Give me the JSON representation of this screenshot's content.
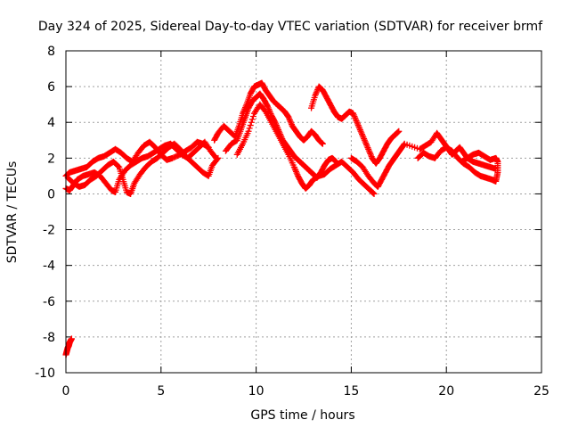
{
  "chart_data": {
    "type": "scatter",
    "title": "Day 324 of 2025, Sidereal Day-to-day VTEC variation (SDTVAR) for receiver brmf",
    "xlabel": "GPS time / hours",
    "ylabel": "SDTVAR / TECUs",
    "xlim": [
      0,
      25
    ],
    "ylim": [
      -10,
      8
    ],
    "xticks": [
      0,
      5,
      10,
      15,
      20,
      25
    ],
    "yticks": [
      -10,
      -8,
      -6,
      -4,
      -2,
      0,
      2,
      4,
      6,
      8
    ],
    "grid": true,
    "marker": "plus",
    "color": "#ff0000",
    "series": [
      {
        "name": "tracks-early",
        "points": [
          [
            0.0,
            1.0
          ],
          [
            0.2,
            1.2
          ],
          [
            0.5,
            1.3
          ],
          [
            0.8,
            1.4
          ],
          [
            1.1,
            1.5
          ],
          [
            1.4,
            1.8
          ],
          [
            1.7,
            2.0
          ],
          [
            2.0,
            2.1
          ],
          [
            2.3,
            2.3
          ],
          [
            2.6,
            2.5
          ],
          [
            2.9,
            2.3
          ],
          [
            3.2,
            2.0
          ],
          [
            3.5,
            1.8
          ],
          [
            3.8,
            2.3
          ],
          [
            4.1,
            2.7
          ],
          [
            4.4,
            2.9
          ],
          [
            4.7,
            2.6
          ],
          [
            5.0,
            2.2
          ],
          [
            5.3,
            1.9
          ],
          [
            5.6,
            2.0
          ],
          [
            6.0,
            2.2
          ],
          [
            6.3,
            2.4
          ],
          [
            6.6,
            2.6
          ],
          [
            6.9,
            2.9
          ],
          [
            7.2,
            2.8
          ],
          [
            7.5,
            2.6
          ]
        ]
      },
      {
        "name": "tracks-early-low",
        "points": [
          [
            0.0,
            0.3
          ],
          [
            0.2,
            0.2
          ],
          [
            0.4,
            0.5
          ],
          [
            0.6,
            0.8
          ],
          [
            0.9,
            1.0
          ],
          [
            1.2,
            1.1
          ],
          [
            1.5,
            1.2
          ],
          [
            1.8,
            1.0
          ],
          [
            2.1,
            0.6
          ],
          [
            2.4,
            0.2
          ],
          [
            2.6,
            0.1
          ],
          [
            2.8,
            0.8
          ],
          [
            3.1,
            1.3
          ],
          [
            3.4,
            1.6
          ],
          [
            3.7,
            1.8
          ],
          [
            4.0,
            2.0
          ],
          [
            4.3,
            2.1
          ],
          [
            4.6,
            2.3
          ],
          [
            4.9,
            2.5
          ],
          [
            5.2,
            2.7
          ],
          [
            5.5,
            2.8
          ],
          [
            5.8,
            2.5
          ],
          [
            6.1,
            2.2
          ],
          [
            6.4,
            2.0
          ],
          [
            6.7,
            2.3
          ],
          [
            7.0,
            2.6
          ],
          [
            7.3,
            2.9
          ],
          [
            7.6,
            2.4
          ],
          [
            7.9,
            2.0
          ]
        ]
      },
      {
        "name": "tracks-dip",
        "points": [
          [
            0.1,
            0.9
          ],
          [
            0.4,
            0.6
          ],
          [
            0.7,
            0.4
          ],
          [
            1.0,
            0.5
          ],
          [
            1.3,
            0.8
          ],
          [
            1.6,
            1.0
          ],
          [
            1.9,
            1.3
          ],
          [
            2.2,
            1.6
          ],
          [
            2.5,
            1.8
          ],
          [
            2.8,
            1.5
          ],
          [
            3.0,
            0.8
          ],
          [
            3.2,
            0.1
          ],
          [
            3.4,
            0.0
          ],
          [
            3.6,
            0.6
          ],
          [
            3.9,
            1.1
          ],
          [
            4.2,
            1.5
          ],
          [
            4.5,
            1.8
          ],
          [
            4.8,
            2.0
          ],
          [
            5.1,
            2.3
          ],
          [
            5.4,
            2.6
          ],
          [
            5.7,
            2.8
          ],
          [
            6.0,
            2.5
          ],
          [
            6.3,
            2.1
          ],
          [
            6.6,
            1.8
          ],
          [
            6.9,
            1.5
          ],
          [
            7.2,
            1.2
          ],
          [
            7.5,
            1.0
          ],
          [
            7.7,
            1.6
          ],
          [
            8.0,
            2.0
          ]
        ]
      },
      {
        "name": "tracks-peak",
        "points": [
          [
            7.8,
            3.0
          ],
          [
            8.0,
            3.4
          ],
          [
            8.3,
            3.8
          ],
          [
            8.6,
            3.5
          ],
          [
            8.9,
            3.2
          ],
          [
            9.1,
            3.8
          ],
          [
            9.3,
            4.5
          ],
          [
            9.5,
            5.0
          ],
          [
            9.7,
            5.6
          ],
          [
            9.9,
            6.0
          ],
          [
            10.1,
            6.1
          ],
          [
            10.3,
            6.2
          ],
          [
            10.5,
            5.8
          ],
          [
            10.7,
            5.5
          ],
          [
            10.9,
            5.2
          ],
          [
            11.1,
            5.0
          ],
          [
            11.3,
            4.8
          ],
          [
            11.5,
            4.6
          ],
          [
            11.7,
            4.3
          ],
          [
            11.9,
            3.8
          ],
          [
            12.1,
            3.5
          ],
          [
            12.3,
            3.2
          ],
          [
            12.5,
            3.0
          ],
          [
            12.7,
            3.2
          ],
          [
            12.9,
            3.5
          ],
          [
            13.1,
            3.3
          ],
          [
            13.3,
            3.0
          ],
          [
            13.5,
            2.8
          ]
        ]
      },
      {
        "name": "tracks-peak-2",
        "points": [
          [
            8.4,
            2.4
          ],
          [
            8.7,
            2.8
          ],
          [
            9.0,
            3.0
          ],
          [
            9.2,
            3.6
          ],
          [
            9.4,
            4.2
          ],
          [
            9.6,
            4.8
          ],
          [
            9.8,
            5.2
          ],
          [
            10.0,
            5.4
          ],
          [
            10.2,
            5.6
          ],
          [
            10.4,
            5.3
          ],
          [
            10.6,
            4.9
          ],
          [
            10.8,
            4.4
          ],
          [
            11.0,
            4.0
          ],
          [
            11.2,
            3.5
          ],
          [
            11.4,
            3.0
          ],
          [
            11.6,
            2.7
          ],
          [
            11.8,
            2.4
          ],
          [
            12.0,
            2.1
          ],
          [
            12.2,
            1.9
          ],
          [
            12.4,
            1.7
          ],
          [
            12.6,
            1.5
          ],
          [
            12.8,
            1.3
          ],
          [
            13.0,
            1.1
          ],
          [
            13.2,
            0.9
          ],
          [
            13.4,
            1.2
          ],
          [
            13.6,
            1.6
          ],
          [
            13.8,
            1.9
          ],
          [
            14.0,
            2.0
          ],
          [
            14.2,
            1.8
          ]
        ]
      },
      {
        "name": "tracks-peak-3",
        "points": [
          [
            9.0,
            2.2
          ],
          [
            9.3,
            2.8
          ],
          [
            9.6,
            3.5
          ],
          [
            9.9,
            4.5
          ],
          [
            10.2,
            5.0
          ],
          [
            10.5,
            4.6
          ],
          [
            10.8,
            4.0
          ],
          [
            11.1,
            3.4
          ],
          [
            11.4,
            2.8
          ],
          [
            11.7,
            2.2
          ],
          [
            12.0,
            1.5
          ],
          [
            12.2,
            1.0
          ],
          [
            12.4,
            0.6
          ],
          [
            12.6,
            0.3
          ],
          [
            12.8,
            0.5
          ],
          [
            13.0,
            0.8
          ],
          [
            13.3,
            1.0
          ],
          [
            13.6,
            1.1
          ],
          [
            13.9,
            1.4
          ],
          [
            14.2,
            1.6
          ],
          [
            14.5,
            1.8
          ],
          [
            14.8,
            1.5
          ],
          [
            15.1,
            1.2
          ],
          [
            15.4,
            0.8
          ],
          [
            15.7,
            0.5
          ],
          [
            16.0,
            0.2
          ],
          [
            16.2,
            0.0
          ]
        ]
      },
      {
        "name": "tracks-mid",
        "points": [
          [
            12.9,
            4.8
          ],
          [
            13.1,
            5.5
          ],
          [
            13.3,
            6.0
          ],
          [
            13.5,
            5.8
          ],
          [
            13.7,
            5.4
          ],
          [
            13.9,
            5.0
          ],
          [
            14.1,
            4.6
          ],
          [
            14.3,
            4.3
          ],
          [
            14.5,
            4.2
          ],
          [
            14.7,
            4.4
          ],
          [
            14.9,
            4.6
          ],
          [
            15.1,
            4.5
          ],
          [
            15.3,
            4.0
          ],
          [
            15.5,
            3.5
          ],
          [
            15.7,
            3.0
          ],
          [
            15.9,
            2.5
          ],
          [
            16.1,
            2.0
          ],
          [
            16.3,
            1.7
          ],
          [
            16.5,
            2.0
          ],
          [
            16.7,
            2.4
          ],
          [
            16.9,
            2.8
          ],
          [
            17.1,
            3.1
          ],
          [
            17.3,
            3.3
          ],
          [
            17.5,
            3.5
          ]
        ]
      },
      {
        "name": "tracks-late",
        "points": [
          [
            15.0,
            2.0
          ],
          [
            15.3,
            1.8
          ],
          [
            15.6,
            1.5
          ],
          [
            15.9,
            1.0
          ],
          [
            16.2,
            0.6
          ],
          [
            16.4,
            0.4
          ],
          [
            16.6,
            0.8
          ],
          [
            16.8,
            1.2
          ],
          [
            17.0,
            1.6
          ],
          [
            17.2,
            1.9
          ],
          [
            17.4,
            2.2
          ],
          [
            17.6,
            2.5
          ],
          [
            17.8,
            2.8
          ],
          [
            18.6,
            2.5
          ],
          [
            18.9,
            2.7
          ],
          [
            19.2,
            2.9
          ],
          [
            19.5,
            3.4
          ],
          [
            19.7,
            3.1
          ],
          [
            19.9,
            2.8
          ],
          [
            20.1,
            2.5
          ],
          [
            20.3,
            2.2
          ],
          [
            20.5,
            2.4
          ],
          [
            20.7,
            2.6
          ],
          [
            20.9,
            2.3
          ],
          [
            21.1,
            2.0
          ],
          [
            21.4,
            1.8
          ],
          [
            21.7,
            1.7
          ],
          [
            22.0,
            1.6
          ],
          [
            22.3,
            1.5
          ],
          [
            22.6,
            1.4
          ]
        ]
      },
      {
        "name": "tracks-late-2",
        "points": [
          [
            18.5,
            2.0
          ],
          [
            18.8,
            2.3
          ],
          [
            19.1,
            2.1
          ],
          [
            19.4,
            2.0
          ],
          [
            19.7,
            2.4
          ],
          [
            20.0,
            2.6
          ],
          [
            20.3,
            2.4
          ],
          [
            20.6,
            2.0
          ],
          [
            20.9,
            1.7
          ],
          [
            21.2,
            1.5
          ],
          [
            21.5,
            1.2
          ],
          [
            21.8,
            1.0
          ],
          [
            22.1,
            0.9
          ],
          [
            22.4,
            0.8
          ],
          [
            22.6,
            0.7
          ],
          [
            22.7,
            1.2
          ],
          [
            22.7,
            1.8
          ],
          [
            22.6,
            2.0
          ],
          [
            22.3,
            1.9
          ],
          [
            22.0,
            2.1
          ],
          [
            21.7,
            2.3
          ],
          [
            21.4,
            2.2
          ],
          [
            21.1,
            2.0
          ],
          [
            20.8,
            1.8
          ]
        ]
      },
      {
        "name": "outlier",
        "points": [
          [
            0.0,
            -9.0
          ],
          [
            0.05,
            -8.8
          ],
          [
            0.1,
            -8.6
          ],
          [
            0.15,
            -8.5
          ],
          [
            0.2,
            -8.3
          ],
          [
            0.25,
            -8.2
          ],
          [
            0.3,
            -8.1
          ]
        ]
      }
    ]
  }
}
